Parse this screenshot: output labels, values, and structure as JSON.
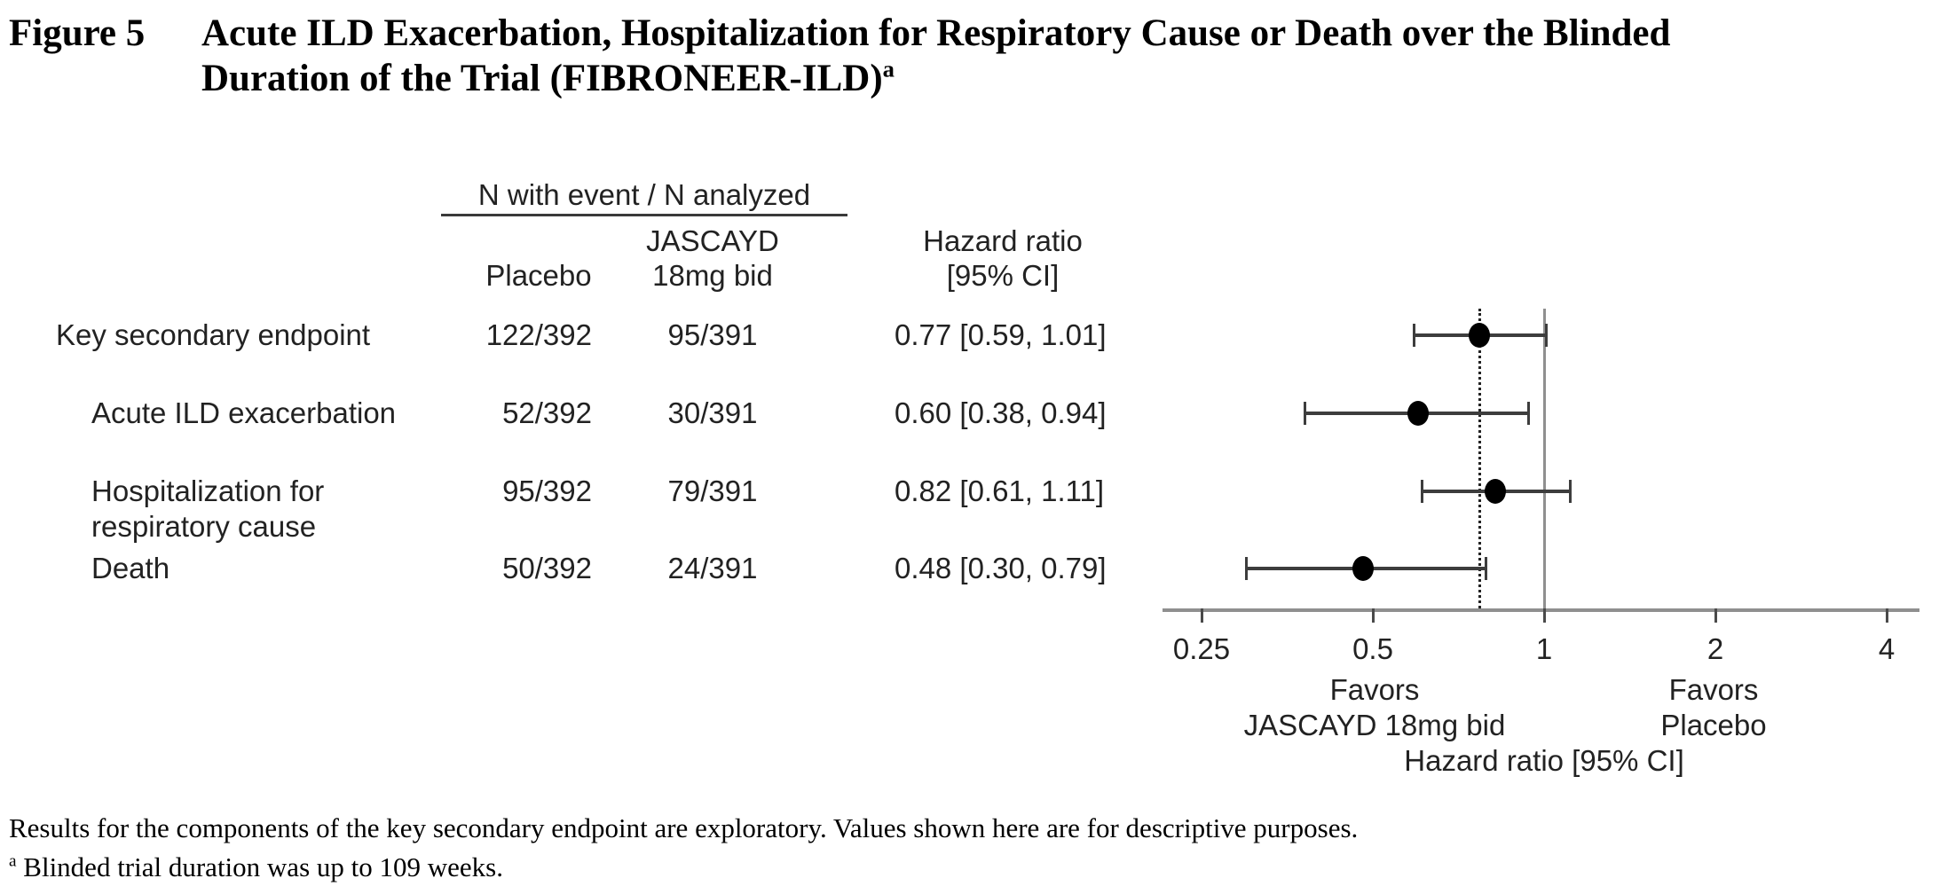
{
  "figure": {
    "label": "Figure 5",
    "title_line1": "Acute ILD Exacerbation, Hospitalization for Respiratory Cause or Death over the Blinded",
    "title_line2": "Duration of the Trial (FIBRONEER-ILD)",
    "title_superscript": "a"
  },
  "table": {
    "group_header": "N with event / N analyzed",
    "columns": {
      "placebo": "Placebo",
      "treatment_line1": "JASCAYD",
      "treatment_line2": "18mg bid",
      "hr_line1": "Hazard ratio",
      "hr_line2": "[95% CI]"
    },
    "rows": [
      {
        "label": "Key secondary endpoint",
        "label2": "",
        "placebo": "122/392",
        "treatment": "95/391",
        "hr_text": "0.77 [0.59, 1.01]"
      },
      {
        "label": "Acute ILD exacerbation",
        "label2": "",
        "placebo": "52/392",
        "treatment": "30/391",
        "hr_text": "0.60 [0.38, 0.94]"
      },
      {
        "label": "Hospitalization for",
        "label2": "respiratory cause",
        "placebo": "95/392",
        "treatment": "79/391",
        "hr_text": "0.82 [0.61, 1.11]"
      },
      {
        "label": "Death",
        "label2": "",
        "placebo": "50/392",
        "treatment": "24/391",
        "hr_text": "0.48 [0.30, 0.79]"
      }
    ]
  },
  "chart_data": {
    "type": "scatter",
    "subtype": "forest-plot",
    "x_axis": {
      "scale": "log2",
      "ticks": [
        0.25,
        0.5,
        1,
        2,
        4
      ],
      "tick_labels": [
        "0.25",
        "0.5",
        "1",
        "2",
        "4"
      ],
      "range": [
        0.25,
        4
      ],
      "label": "Hazard ratio [95% CI]"
    },
    "reference_line_solid": 1,
    "reference_line_dotted": 0.77,
    "points": [
      {
        "name": "Key secondary endpoint",
        "hr": 0.77,
        "ci_low": 0.59,
        "ci_high": 1.01
      },
      {
        "name": "Acute ILD exacerbation",
        "hr": 0.6,
        "ci_low": 0.38,
        "ci_high": 0.94
      },
      {
        "name": "Hospitalization for respiratory cause",
        "hr": 0.82,
        "ci_low": 0.61,
        "ci_high": 1.11
      },
      {
        "name": "Death",
        "hr": 0.48,
        "ci_low": 0.3,
        "ci_high": 0.79
      }
    ],
    "favors_left_line1": "Favors",
    "favors_left_line2": "JASCAYD 18mg bid",
    "favors_right_line1": "Favors",
    "favors_right_line2": "Placebo",
    "legend_position": "below-axis",
    "grid": false
  },
  "footnotes": {
    "line1": "Results for the components of the key secondary endpoint are exploratory. Values shown here are for descriptive purposes.",
    "line2_superscript": "a",
    "line2": " Blinded trial duration was up to 109 weeks."
  },
  "colors": {
    "text": "#000000",
    "table_text": "#222222",
    "marker": "#000000",
    "ci_line": "#3d3d3d",
    "axis_line": "#8f8f8f",
    "tick": "#4a4a4a",
    "ref_solid": "#8f8f8f",
    "ref_dotted": "#222222"
  }
}
